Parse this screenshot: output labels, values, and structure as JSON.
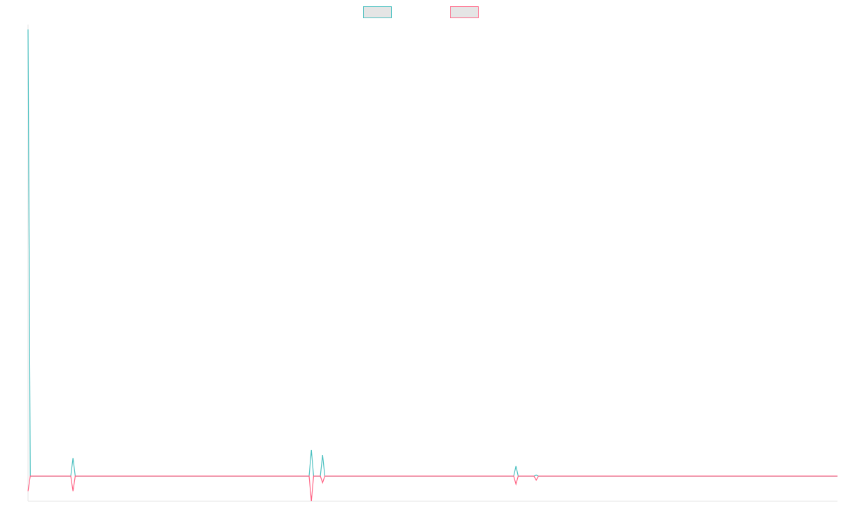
{
  "chart_data": {
    "type": "line",
    "title": "",
    "xlabel": "",
    "ylabel": "",
    "grid": false,
    "legend": {
      "position": "top-center",
      "show_labels": false
    },
    "x_count": 361,
    "ylim": [
      -5,
      90
    ],
    "series": [
      {
        "color": "#4bc0c0",
        "fill": "#e5e5e5",
        "baseline": 0,
        "points": [
          [
            0,
            89
          ],
          [
            1,
            0
          ],
          [
            19,
            0
          ],
          [
            20,
            3.6
          ],
          [
            21,
            0
          ],
          [
            125,
            0
          ],
          [
            126,
            5.2
          ],
          [
            127,
            0
          ],
          [
            130,
            0
          ],
          [
            131,
            4.2
          ],
          [
            132,
            0
          ],
          [
            216,
            0
          ],
          [
            217,
            2
          ],
          [
            218,
            0
          ],
          [
            225,
            0
          ],
          [
            226,
            0.2
          ],
          [
            227,
            0
          ],
          [
            360,
            0
          ]
        ]
      },
      {
        "color": "#ff6384",
        "fill": "#e5e5e5",
        "baseline": 0,
        "points": [
          [
            0,
            -3
          ],
          [
            1,
            0
          ],
          [
            19,
            0
          ],
          [
            20,
            -3
          ],
          [
            21,
            0
          ],
          [
            125,
            0
          ],
          [
            126,
            -5
          ],
          [
            127,
            0
          ],
          [
            130,
            0
          ],
          [
            131,
            -1.3
          ],
          [
            132,
            0
          ],
          [
            216,
            0
          ],
          [
            217,
            -1.6
          ],
          [
            218,
            0
          ],
          [
            225,
            0
          ],
          [
            226,
            -0.8
          ],
          [
            227,
            0
          ],
          [
            360,
            0
          ]
        ]
      }
    ]
  }
}
